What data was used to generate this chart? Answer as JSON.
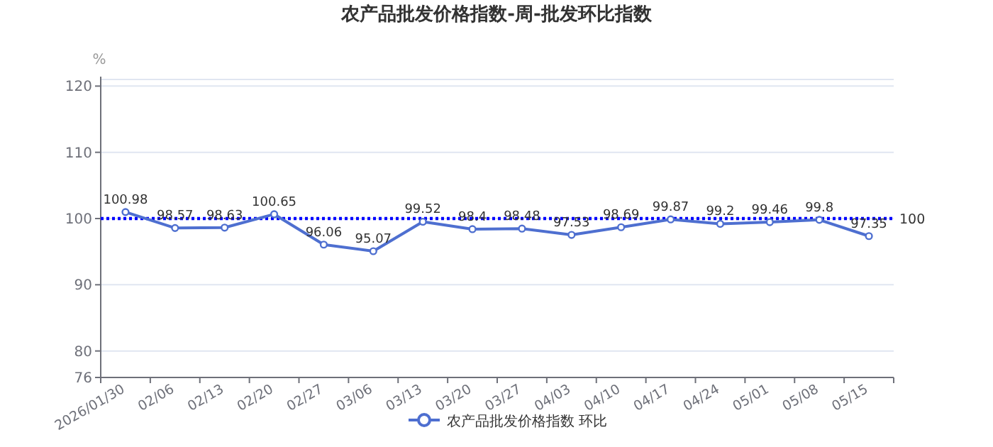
{
  "chart_data": {
    "type": "line",
    "title": "农产品批发价格指数-周-批发环比指数",
    "ylabel": "%",
    "categories": [
      "2026/01/30",
      "02/06",
      "02/13",
      "02/20",
      "02/27",
      "03/06",
      "03/13",
      "03/20",
      "03/27",
      "04/03",
      "04/10",
      "04/17",
      "04/24",
      "05/01",
      "05/08",
      "05/15"
    ],
    "series": [
      {
        "name": "农产品批发价格指数 环比",
        "color": "#4e6fd0",
        "values": [
          100.98,
          98.57,
          98.63,
          100.65,
          96.06,
          95.07,
          99.52,
          98.4,
          98.48,
          97.53,
          98.69,
          99.87,
          99.2,
          99.46,
          99.8,
          97.35
        ]
      }
    ],
    "ylim": [
      76,
      121
    ],
    "yticks": [
      76,
      80,
      90,
      100,
      110,
      120
    ],
    "grid": "y",
    "legend": "bottom",
    "marker": "circle",
    "line_style": "solid",
    "data_labels": true,
    "ref_lines": [
      {
        "axis": "y",
        "value": 100,
        "label": "100",
        "color": "#0000ff",
        "line_style": "dotted"
      }
    ]
  }
}
